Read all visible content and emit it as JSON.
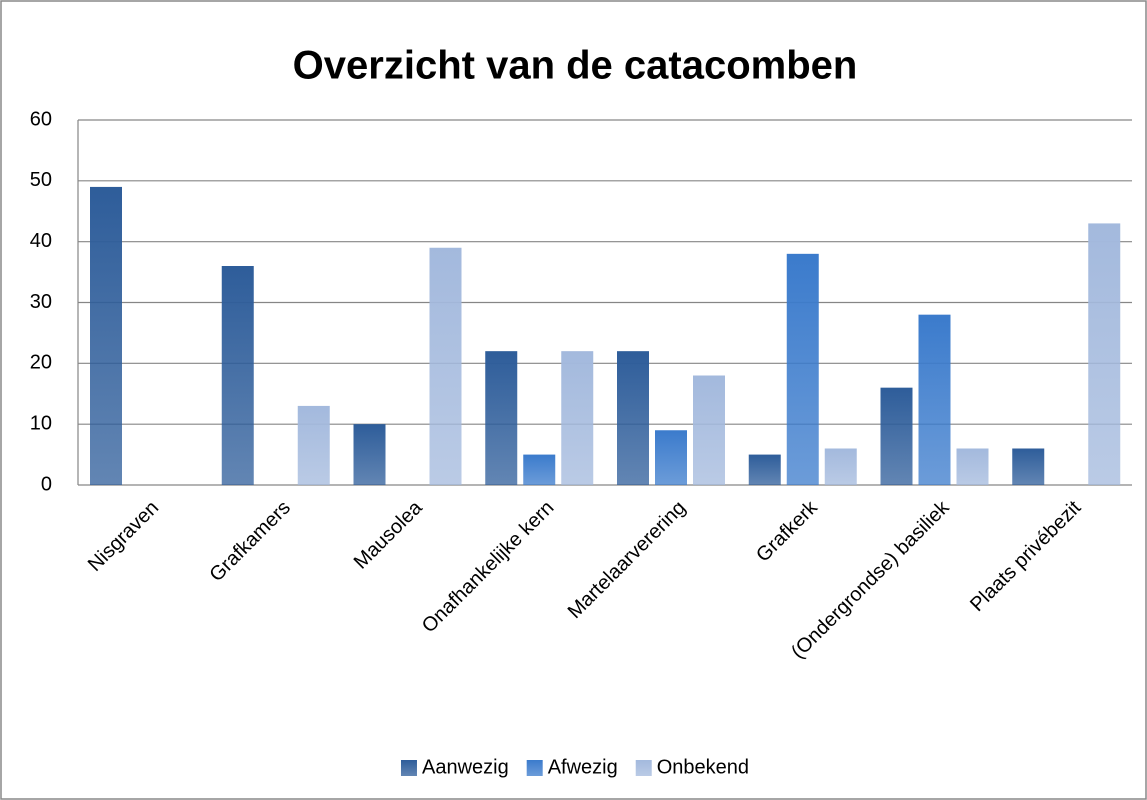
{
  "chart_data": {
    "type": "bar",
    "title": "Overzicht van de catacomben",
    "categories": [
      "Nisgraven",
      "Grafkamers",
      "Mausolea",
      "Onafhankelijke kern",
      "Martelaarverering",
      "Grafkerk",
      "(Ondergrondse) basiliek",
      "Plaats privébezit"
    ],
    "series": [
      {
        "name": "Aanwezig",
        "color": "#2e5d9a",
        "values": [
          49,
          36,
          10,
          22,
          22,
          5,
          16,
          6
        ]
      },
      {
        "name": "Afwezig",
        "color": "#3b7bcc",
        "values": [
          0,
          0,
          0,
          5,
          9,
          38,
          28,
          0
        ]
      },
      {
        "name": "Onbekend",
        "color": "#a3b9dd",
        "values": [
          0,
          13,
          39,
          22,
          18,
          6,
          6,
          43
        ]
      }
    ],
    "ylim": [
      0,
      60
    ],
    "yticks": [
      0,
      10,
      20,
      30,
      40,
      50,
      60
    ],
    "grid": true,
    "legend": "bottom"
  }
}
